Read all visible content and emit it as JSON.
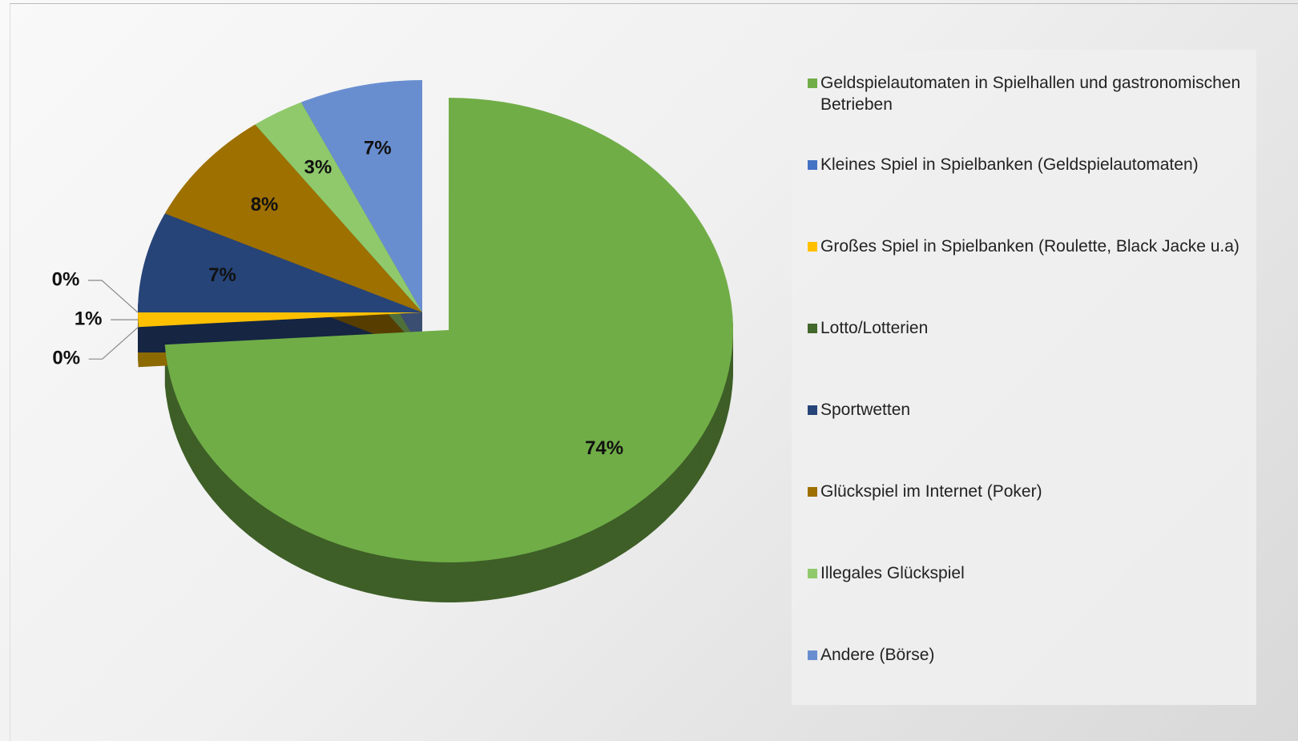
{
  "chart_data": {
    "type": "pie",
    "categories": [
      "Geldspielautomaten in Spielhallen und gastronomischen Betrieben",
      "Kleines Spiel in Spielbanken (Geldspielautomaten)",
      "Großes Spiel in Spielbanken (Roulette, Black Jacke u.a)",
      "Lotto/Lotterien",
      "Sportwetten",
      "Glückspiel im Internet (Poker)",
      "Illegales Glückspiel",
      "Andere (Börse)"
    ],
    "values": [
      74,
      0,
      1,
      0,
      7,
      8,
      3,
      7
    ],
    "value_labels": [
      "74%",
      "0%",
      "1%",
      "0%",
      "7%",
      "8%",
      "3%",
      "7%"
    ],
    "colors": [
      "#70ad47",
      "#4472c4",
      "#ffc000",
      "#43682b",
      "#264478",
      "#9e7000",
      "#8fc96b",
      "#698ed0"
    ],
    "legend": "right"
  }
}
